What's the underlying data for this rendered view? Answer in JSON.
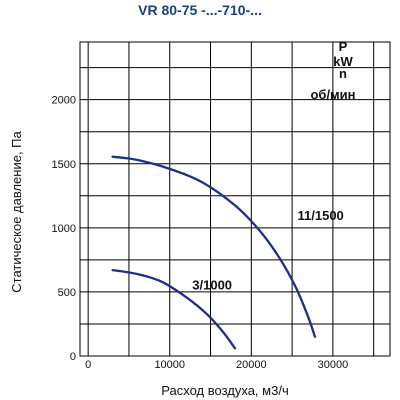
{
  "chart_data": {
    "type": "line",
    "title": "VR 80-75 -...-710-...",
    "xlabel": "Расход воздуха, м3/ч",
    "ylabel": "Статическое давление, Па",
    "xlim": [
      -1000,
      37000
    ],
    "ylim": [
      0,
      2450
    ],
    "x_ticks": [
      {
        "value": 0,
        "label": "0"
      },
      {
        "value": 10000,
        "label": "10000"
      },
      {
        "value": 20000,
        "label": "20000"
      },
      {
        "value": 30000,
        "label": "30000"
      }
    ],
    "y_ticks": [
      {
        "value": 0,
        "label": "0"
      },
      {
        "value": 500,
        "label": "500"
      },
      {
        "value": 1000,
        "label": "1000"
      },
      {
        "value": 1500,
        "label": "1500"
      },
      {
        "value": 2000,
        "label": "2000"
      }
    ],
    "grid_x_step": 5000,
    "grid_y_step": 250,
    "grid": true,
    "corner_annotations": [
      "P",
      "kW",
      "n",
      "об/мин"
    ],
    "series": [
      {
        "name": "11/1500",
        "color": "#1c2f8c",
        "x": [
          3000,
          6000,
          10000,
          14000,
          18000,
          21000,
          23500,
          25500,
          27000,
          27800
        ],
        "y": [
          1555,
          1530,
          1460,
          1355,
          1175,
          980,
          760,
          530,
          300,
          150
        ]
      },
      {
        "name": "3/1000",
        "color": "#1c2f8c",
        "x": [
          3000,
          6000,
          9000,
          12000,
          14500,
          16500,
          18000
        ],
        "y": [
          670,
          640,
          580,
          460,
          330,
          190,
          60
        ]
      }
    ],
    "series_label_anchor": [
      {
        "x": 28500,
        "y": 1060
      },
      {
        "x": 15200,
        "y": 520
      }
    ]
  }
}
